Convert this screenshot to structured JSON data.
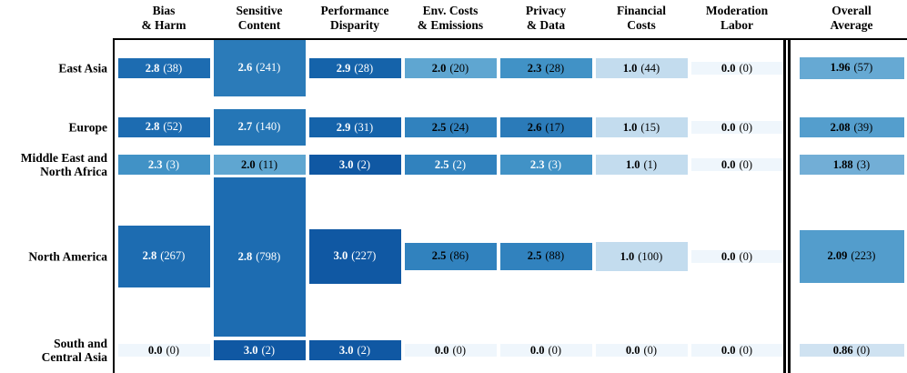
{
  "figure": {
    "columns": [
      {
        "id": "bias-harm",
        "line1": "Bias",
        "line2": "& Harm"
      },
      {
        "id": "sensitive-content",
        "line1": "Sensitive",
        "line2": "Content"
      },
      {
        "id": "performance-disparity",
        "line1": "Performance",
        "line2": "Disparity"
      },
      {
        "id": "env-costs-emissions",
        "line1": "Env. Costs",
        "line2": "& Emissions"
      },
      {
        "id": "privacy-data",
        "line1": "Privacy",
        "line2": "& Data"
      },
      {
        "id": "financial-costs",
        "line1": "Financial",
        "line2": "Costs"
      },
      {
        "id": "moderation-labor",
        "line1": "Moderation",
        "line2": "Labor"
      },
      {
        "id": "overall-average",
        "line1": "Overall",
        "line2": "Average"
      }
    ],
    "rows": [
      {
        "label_lines": [
          "East Asia"
        ],
        "cells": [
          {
            "value": "2.8",
            "count": 38,
            "count_label": "(38)",
            "bg": "#1d6cb1",
            "fg": "#ffffff"
          },
          {
            "value": "2.6",
            "count": 241,
            "count_label": "(241)",
            "bg": "#2b7bb9",
            "fg": "#ffffff"
          },
          {
            "value": "2.9",
            "count": 28,
            "count_label": "(28)",
            "bg": "#1563aa",
            "fg": "#ffffff"
          },
          {
            "value": "2.0",
            "count": 20,
            "count_label": "(20)",
            "bg": "#5fa6d1",
            "fg": "#000000"
          },
          {
            "value": "2.3",
            "count": 28,
            "count_label": "(28)",
            "bg": "#4192c6",
            "fg": "#000000"
          },
          {
            "value": "1.0",
            "count": 44,
            "count_label": "(44)",
            "bg": "#c3dcee",
            "fg": "#000000"
          },
          {
            "value": "0.0",
            "count": 0,
            "count_label": "(0)",
            "bg": "#eff6fc",
            "fg": "#000000"
          },
          {
            "value": "1.96",
            "count": 57,
            "count_label": "(57)",
            "bg": "#66a9d3",
            "fg": "#000000"
          }
        ]
      },
      {
        "label_lines": [
          "Europe"
        ],
        "cells": [
          {
            "value": "2.8",
            "count": 52,
            "count_label": "(52)",
            "bg": "#1d6cb1",
            "fg": "#ffffff"
          },
          {
            "value": "2.7",
            "count": 140,
            "count_label": "(140)",
            "bg": "#2576b6",
            "fg": "#ffffff"
          },
          {
            "value": "2.9",
            "count": 31,
            "count_label": "(31)",
            "bg": "#1563aa",
            "fg": "#ffffff"
          },
          {
            "value": "2.5",
            "count": 24,
            "count_label": "(24)",
            "bg": "#3182be",
            "fg": "#000000"
          },
          {
            "value": "2.6",
            "count": 17,
            "count_label": "(17)",
            "bg": "#2b7bb9",
            "fg": "#000000"
          },
          {
            "value": "1.0",
            "count": 15,
            "count_label": "(15)",
            "bg": "#c3dcee",
            "fg": "#000000"
          },
          {
            "value": "0.0",
            "count": 0,
            "count_label": "(0)",
            "bg": "#eff6fc",
            "fg": "#000000"
          },
          {
            "value": "2.08",
            "count": 39,
            "count_label": "(39)",
            "bg": "#549ecd",
            "fg": "#000000"
          }
        ]
      },
      {
        "label_lines": [
          "Middle East and",
          "North Africa"
        ],
        "cells": [
          {
            "value": "2.3",
            "count": 3,
            "count_label": "(3)",
            "bg": "#4192c6",
            "fg": "#ffffff"
          },
          {
            "value": "2.0",
            "count": 11,
            "count_label": "(11)",
            "bg": "#5fa6d1",
            "fg": "#000000"
          },
          {
            "value": "3.0",
            "count": 2,
            "count_label": "(2)",
            "bg": "#1058a3",
            "fg": "#ffffff"
          },
          {
            "value": "2.5",
            "count": 2,
            "count_label": "(2)",
            "bg": "#3182be",
            "fg": "#ffffff"
          },
          {
            "value": "2.3",
            "count": 3,
            "count_label": "(3)",
            "bg": "#4192c6",
            "fg": "#ffffff"
          },
          {
            "value": "1.0",
            "count": 1,
            "count_label": "(1)",
            "bg": "#c3dcee",
            "fg": "#000000"
          },
          {
            "value": "0.0",
            "count": 0,
            "count_label": "(0)",
            "bg": "#eff6fc",
            "fg": "#000000"
          },
          {
            "value": "1.88",
            "count": 3,
            "count_label": "(3)",
            "bg": "#72aed6",
            "fg": "#000000"
          }
        ]
      },
      {
        "label_lines": [
          "North America"
        ],
        "cells": [
          {
            "value": "2.8",
            "count": 267,
            "count_label": "(267)",
            "bg": "#1d6cb1",
            "fg": "#ffffff"
          },
          {
            "value": "2.8",
            "count": 798,
            "count_label": "(798)",
            "bg": "#1d6cb1",
            "fg": "#ffffff"
          },
          {
            "value": "3.0",
            "count": 227,
            "count_label": "(227)",
            "bg": "#1058a3",
            "fg": "#ffffff"
          },
          {
            "value": "2.5",
            "count": 86,
            "count_label": "(86)",
            "bg": "#3182be",
            "fg": "#000000"
          },
          {
            "value": "2.5",
            "count": 88,
            "count_label": "(88)",
            "bg": "#3182be",
            "fg": "#000000"
          },
          {
            "value": "1.0",
            "count": 100,
            "count_label": "(100)",
            "bg": "#c3dcee",
            "fg": "#000000"
          },
          {
            "value": "0.0",
            "count": 0,
            "count_label": "(0)",
            "bg": "#eff6fc",
            "fg": "#000000"
          },
          {
            "value": "2.09",
            "count": 223,
            "count_label": "(223)",
            "bg": "#539dcc",
            "fg": "#000000"
          }
        ]
      },
      {
        "label_lines": [
          "South and",
          "Central Asia"
        ],
        "cells": [
          {
            "value": "0.0",
            "count": 0,
            "count_label": "(0)",
            "bg": "#eff6fc",
            "fg": "#000000"
          },
          {
            "value": "3.0",
            "count": 2,
            "count_label": "(2)",
            "bg": "#1058a3",
            "fg": "#ffffff"
          },
          {
            "value": "3.0",
            "count": 2,
            "count_label": "(2)",
            "bg": "#1058a3",
            "fg": "#ffffff"
          },
          {
            "value": "0.0",
            "count": 0,
            "count_label": "(0)",
            "bg": "#eff6fc",
            "fg": "#000000"
          },
          {
            "value": "0.0",
            "count": 0,
            "count_label": "(0)",
            "bg": "#eff6fc",
            "fg": "#000000"
          },
          {
            "value": "0.0",
            "count": 0,
            "count_label": "(0)",
            "bg": "#eff6fc",
            "fg": "#000000"
          },
          {
            "value": "0.0",
            "count": 0,
            "count_label": "(0)",
            "bg": "#eff6fc",
            "fg": "#000000"
          },
          {
            "value": "0.86",
            "count": 0,
            "count_label": "(0)",
            "bg": "#cfe2f1",
            "fg": "#000000"
          }
        ]
      }
    ],
    "colors": {
      "accent_dark_blue": "#1058a3",
      "accent_light_blue": "#c3dcee",
      "zero_cell": "#eff6fc",
      "axis_line": "#000000"
    }
  },
  "chart_data": {
    "type": "heatmap",
    "title": "",
    "xlabel": "",
    "ylabel": "",
    "legend": "none",
    "colormap": "Blues",
    "cell_format": "mean_score (count)",
    "layout_hint": "cell height proportional to count; double vertical rule separates Overall Average column",
    "columns": [
      "Bias & Harm",
      "Sensitive Content",
      "Performance Disparity",
      "Env. Costs & Emissions",
      "Privacy & Data",
      "Financial Costs",
      "Moderation Labor",
      "Overall Average"
    ],
    "rows": [
      "East Asia",
      "Europe",
      "Middle East and North Africa",
      "North America",
      "South and Central Asia"
    ],
    "values": [
      [
        2.8,
        2.6,
        2.9,
        2.0,
        2.3,
        1.0,
        0.0,
        1.96
      ],
      [
        2.8,
        2.7,
        2.9,
        2.5,
        2.6,
        1.0,
        0.0,
        2.08
      ],
      [
        2.3,
        2.0,
        3.0,
        2.5,
        2.3,
        1.0,
        0.0,
        1.88
      ],
      [
        2.8,
        2.8,
        3.0,
        2.5,
        2.5,
        1.0,
        0.0,
        2.09
      ],
      [
        0.0,
        3.0,
        3.0,
        0.0,
        0.0,
        0.0,
        0.0,
        0.86
      ]
    ],
    "counts": [
      [
        38,
        241,
        28,
        20,
        28,
        44,
        0,
        57
      ],
      [
        52,
        140,
        31,
        24,
        17,
        15,
        0,
        39
      ],
      [
        3,
        11,
        2,
        2,
        3,
        1,
        0,
        3
      ],
      [
        267,
        798,
        227,
        86,
        88,
        100,
        0,
        223
      ],
      [
        0,
        2,
        2,
        0,
        0,
        0,
        0,
        0
      ]
    ],
    "value_range": [
      0.0,
      3.0
    ]
  }
}
